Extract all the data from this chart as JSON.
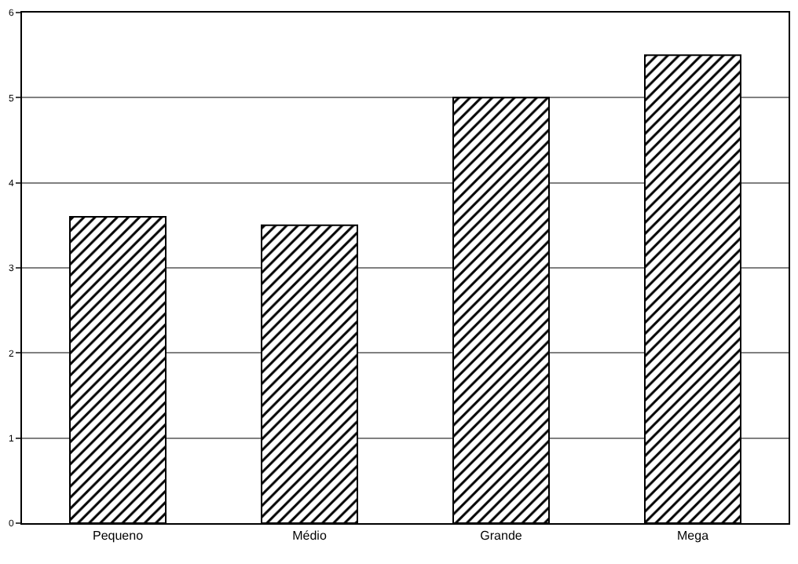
{
  "chart_data": {
    "type": "bar",
    "categories": [
      "Pequeno",
      "Médio",
      "Grande",
      "Mega"
    ],
    "values": [
      3.6,
      3.5,
      5.0,
      5.5
    ],
    "color": "#000000",
    "ylim": [
      0,
      6
    ],
    "yticks": [
      0,
      1,
      2,
      3,
      4,
      5,
      6
    ],
    "grid": "y",
    "legend": false
  }
}
